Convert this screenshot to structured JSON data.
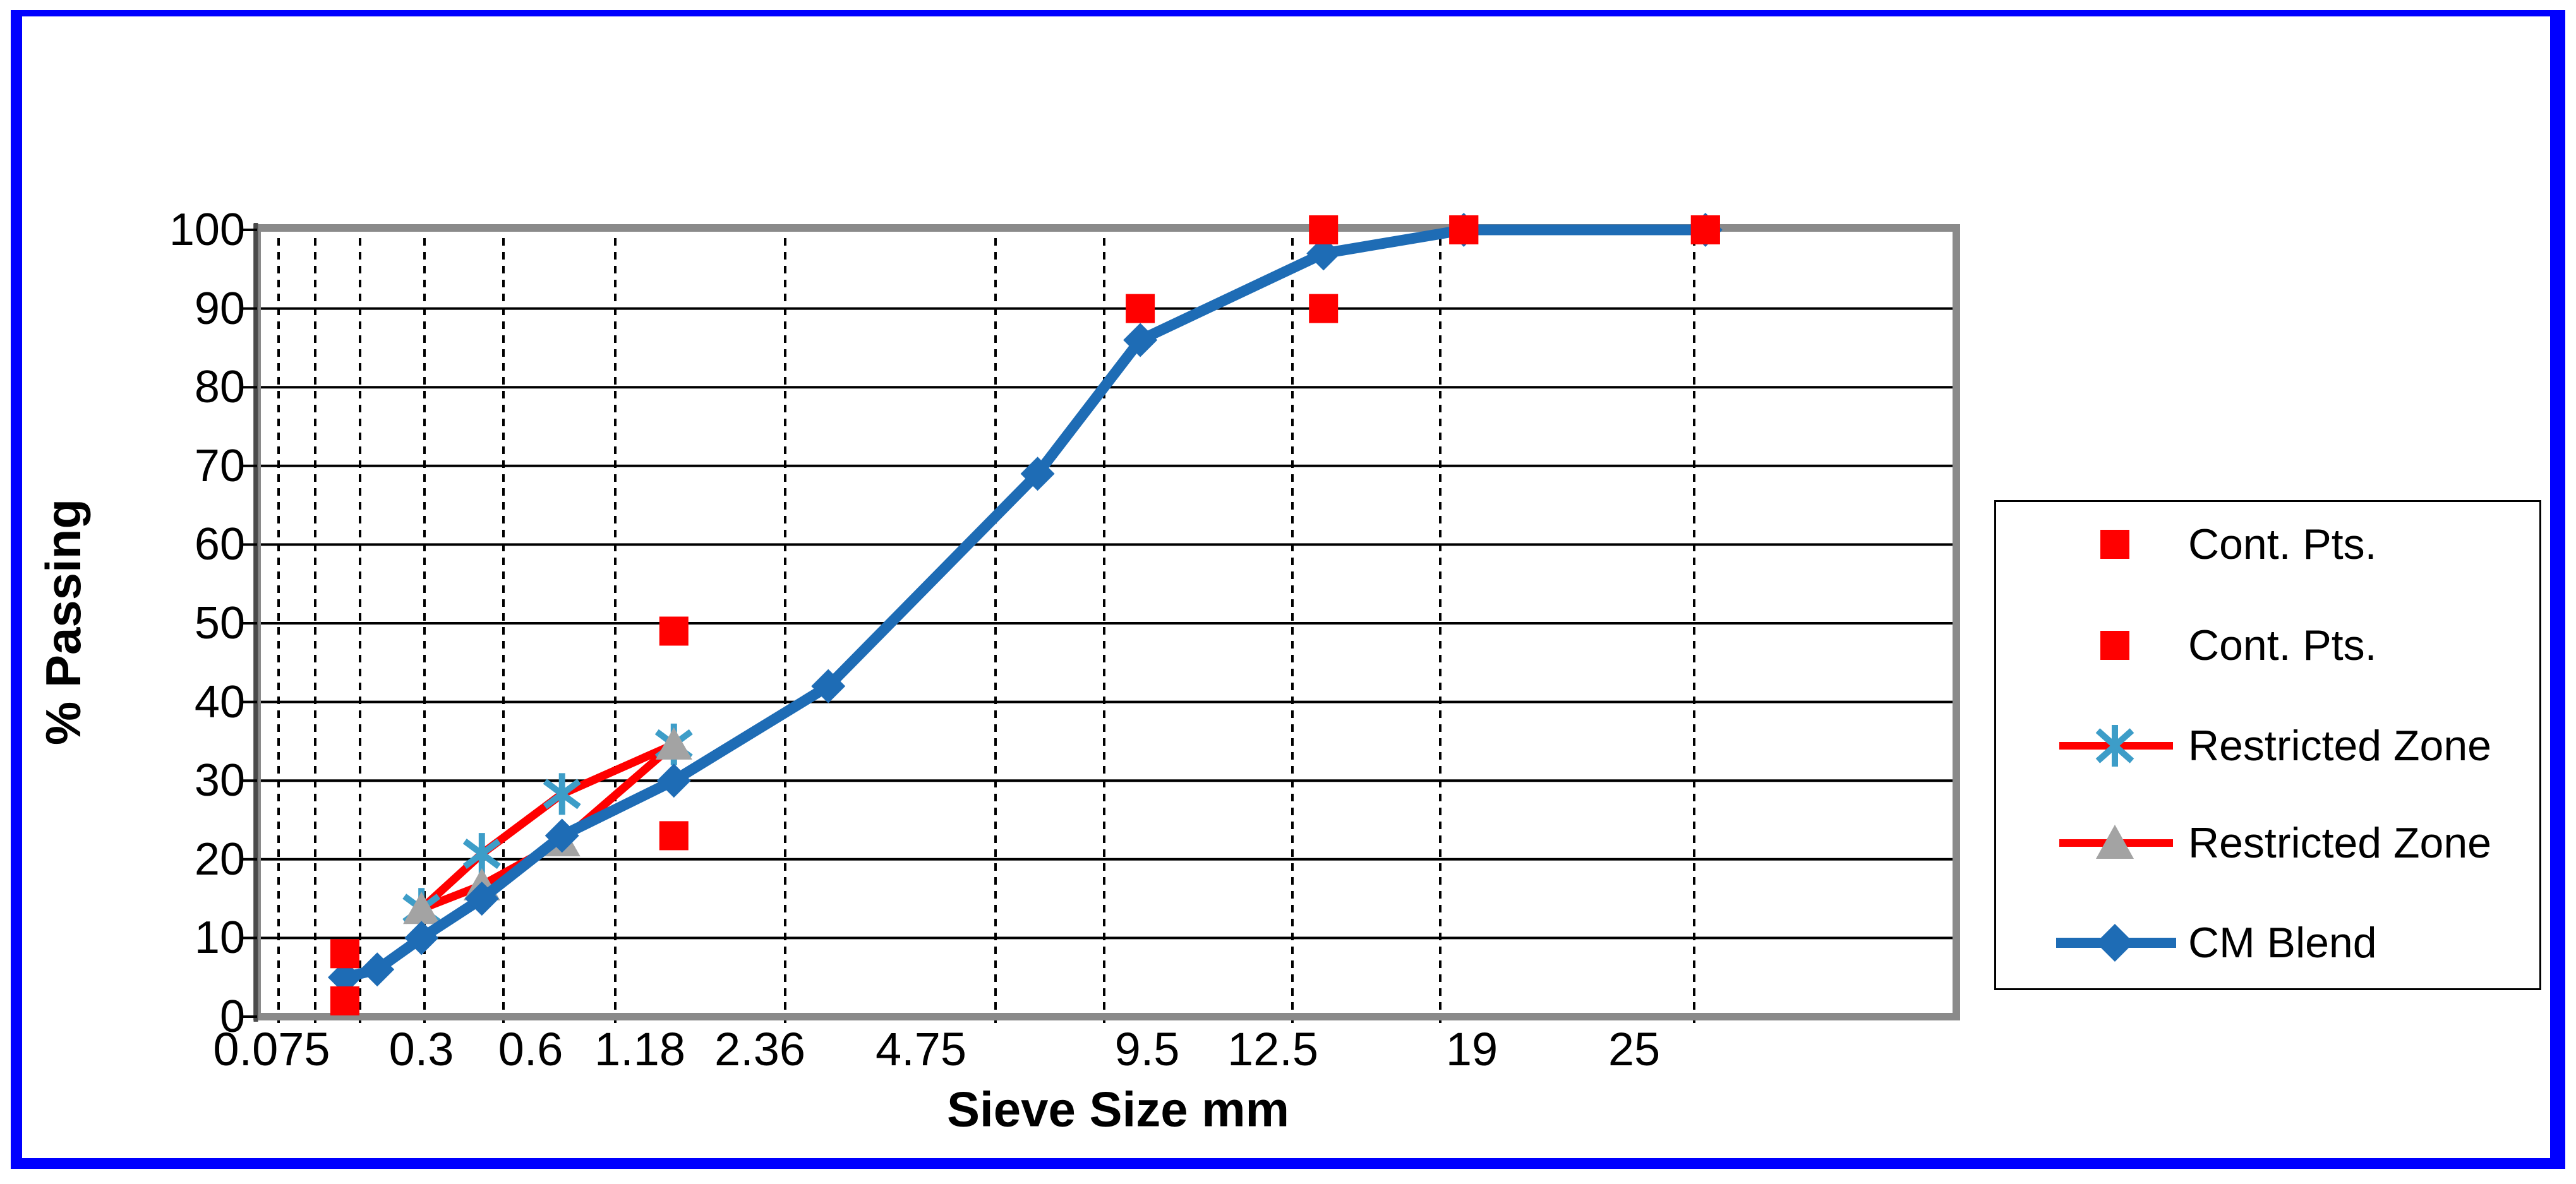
{
  "chart_data": {
    "type": "line",
    "title": "",
    "xlabel": "Sieve Size mm",
    "ylabel": "% Passing",
    "x_axis": {
      "scale": "0.45-power sieve scale",
      "ticks": [
        {
          "label": "0.075",
          "px": 430
        },
        {
          "label": "0.3",
          "px": 667
        },
        {
          "label": "0.6",
          "px": 840
        },
        {
          "label": "1.18",
          "px": 1013
        },
        {
          "label": "2.36",
          "px": 1203
        },
        {
          "label": "4.75",
          "px": 1458
        },
        {
          "label": "9.5",
          "px": 1816
        },
        {
          "label": "12.5",
          "px": 2015
        },
        {
          "label": "19",
          "px": 2330
        },
        {
          "label": "25",
          "px": 2587
        }
      ],
      "gridlines": [
        {
          "mm": 0.075,
          "px": 441
        },
        {
          "mm": 0.15,
          "px": 499
        },
        {
          "mm": 0.3,
          "px": 570
        },
        {
          "mm": 0.6,
          "px": 672
        },
        {
          "mm": 1.18,
          "px": 797
        },
        {
          "mm": 2.36,
          "px": 974
        },
        {
          "mm": 4.75,
          "px": 1243
        },
        {
          "mm": 9.5,
          "px": 1576
        },
        {
          "mm": 12.5,
          "px": 1748
        },
        {
          "mm": 19,
          "px": 2046
        },
        {
          "mm": 25,
          "px": 2280
        },
        {
          "mm": 37.5,
          "px": 2682
        }
      ]
    },
    "y_axis": {
      "min": 0,
      "max": 100,
      "step": 10,
      "tick_labels": [
        "0",
        "10",
        "20",
        "30",
        "40",
        "50",
        "60",
        "70",
        "80",
        "90",
        "100"
      ]
    },
    "grid": "both",
    "legend_position": "right",
    "series": [
      {
        "name": "Cont. Pts.",
        "marker": "square",
        "marker_color": "#FF0000",
        "line": "none",
        "points": [
          [
            0.075,
            8
          ],
          [
            2.36,
            49
          ],
          [
            12.5,
            90
          ],
          [
            19,
            100
          ],
          [
            25,
            100
          ],
          [
            37.5,
            100
          ]
        ]
      },
      {
        "name": "Cont. Pts.",
        "marker": "square",
        "marker_color": "#FF0000",
        "line": "none",
        "points": [
          [
            0.075,
            2
          ],
          [
            2.36,
            23
          ],
          [
            19,
            90
          ],
          [
            25,
            100
          ],
          [
            37.5,
            100
          ]
        ]
      },
      {
        "name": "Restricted Zone",
        "marker": "star",
        "marker_color": "#3D9DC8",
        "line_color": "#FF0000",
        "points": [
          [
            0.3,
            13.7
          ],
          [
            0.6,
            20.7
          ],
          [
            1.18,
            28.3
          ],
          [
            2.36,
            34.6
          ]
        ]
      },
      {
        "name": "Restricted Zone",
        "marker": "triangle",
        "marker_color": "#A3A3A3",
        "line_color": "#FF0000",
        "points": [
          [
            0.3,
            13.7
          ],
          [
            0.6,
            16.7
          ],
          [
            1.18,
            22.3
          ],
          [
            2.36,
            34.6
          ]
        ]
      },
      {
        "name": "CM Blend",
        "marker": "diamond",
        "marker_color": "#1E6CB5",
        "line_color": "#1E6CB5",
        "points": [
          [
            0.075,
            5
          ],
          [
            0.15,
            6
          ],
          [
            0.3,
            10
          ],
          [
            0.6,
            15
          ],
          [
            1.18,
            23
          ],
          [
            2.36,
            30
          ],
          [
            4.75,
            42
          ],
          [
            9.5,
            69
          ],
          [
            12.5,
            86
          ],
          [
            19,
            97
          ],
          [
            25,
            100
          ],
          [
            37.5,
            100
          ]
        ]
      }
    ],
    "colors": {
      "control_points": "#FF0000",
      "restricted_zone_line": "#FF0000",
      "restricted_zone_star": "#3D9DC8",
      "restricted_zone_triangle": "#A3A3A3",
      "blend": "#1E6CB5",
      "plot_border": "#8A8A8A",
      "outer_frame": "#0000FF",
      "gridline": "#000000"
    }
  }
}
